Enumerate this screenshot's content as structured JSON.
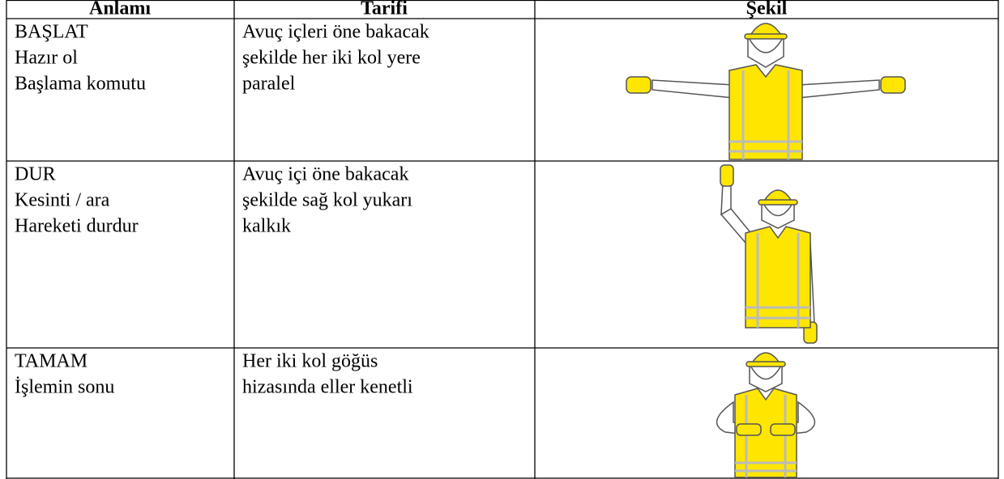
{
  "table": {
    "header": [
      "Anlamı",
      "Tarifi",
      "Şekil"
    ],
    "rows": [
      [
        [
          "BAŞLAT",
          "Hazır ol",
          "Başlama komutu"
        ],
        [
          "Avuç içleri öne bakacak",
          "şekilde her iki kol yere",
          "paralel"
        ]
      ],
      [
        [
          "DUR",
          "Kesinti / ara",
          "Hareketi durdur"
        ],
        [
          "Avuç içi öne bakacak",
          "şekilde sağ kol yukarı",
          "kalkık"
        ]
      ],
      [
        [
          "TAMAM",
          "İşlemin sonu"
        ],
        [
          "Her iki kol göğüs",
          "hizasında eller kenetli"
        ]
      ]
    ]
  }
}
